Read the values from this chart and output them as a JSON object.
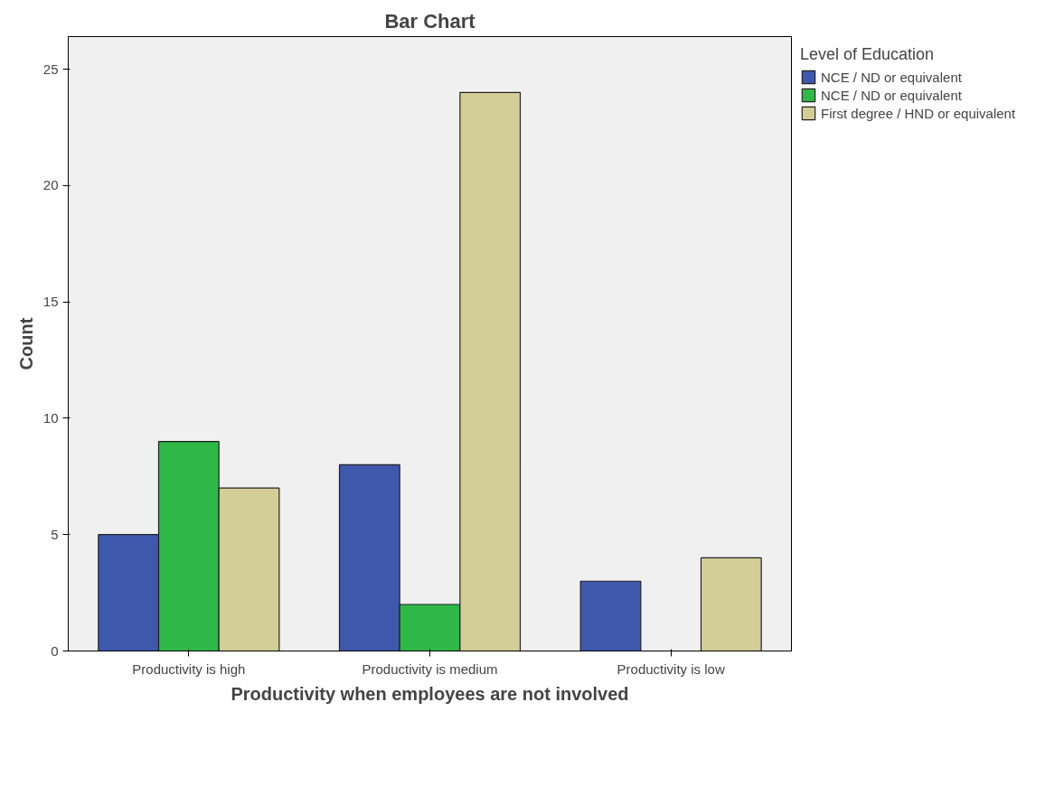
{
  "chart_data": {
    "type": "bar",
    "title": "Bar Chart",
    "xlabel": "Productivity when employees are not involved",
    "ylabel": "Count",
    "legend_title": "Level of Education",
    "categories": [
      "Productivity is high",
      "Productivity is medium",
      "Productivity is low"
    ],
    "series": [
      {
        "name": "NCE / ND or equivalent",
        "color": "#3e58ac",
        "values": [
          5,
          8,
          3
        ]
      },
      {
        "name": "NCE / ND or equivalent",
        "color": "#2fb847",
        "values": [
          9,
          2,
          null
        ]
      },
      {
        "name": "First degree / HND or equivalent",
        "color": "#d3ce97",
        "values": [
          7,
          24,
          4
        ]
      }
    ],
    "ylim": [
      0,
      26.4
    ],
    "yticks": [
      0,
      5,
      10,
      15,
      20,
      25
    ],
    "grid": false,
    "legend": "top right"
  }
}
